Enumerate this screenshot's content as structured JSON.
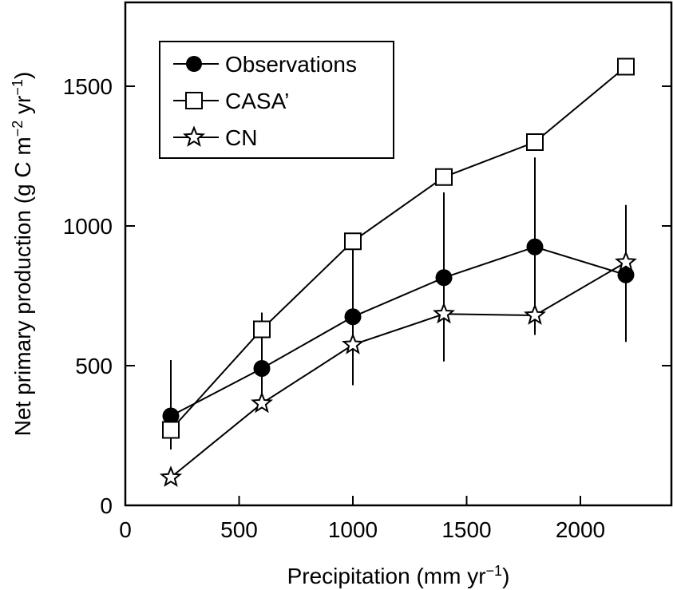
{
  "chart_data": {
    "type": "line",
    "xlabel": "Precipitation (mm yr",
    "xlabel_sup": "−1",
    "xlabel_end": ")",
    "ylabel": "Net primary production (g C m",
    "ylabel_sup1": "−2",
    "ylabel_mid": " yr",
    "ylabel_sup2": "−1",
    "ylabel_end": ")",
    "xlim": [
      0,
      2400
    ],
    "ylim": [
      0,
      1800
    ],
    "xticks": [
      0,
      500,
      1000,
      1500,
      2000
    ],
    "yticks": [
      0,
      500,
      1000,
      1500
    ],
    "xtick_labels": [
      "0",
      "500",
      "1000",
      "1500",
      "2000"
    ],
    "ytick_labels": [
      "0",
      "500",
      "1000",
      "1500"
    ],
    "grid": false,
    "legend_position": "top-left",
    "series": [
      {
        "name": "Observations",
        "marker": "filled-circle",
        "x": [
          200,
          600,
          1000,
          1400,
          1800,
          2200
        ],
        "y": [
          320,
          490,
          675,
          815,
          925,
          825
        ],
        "err_low": [
          200,
          360,
          430,
          515,
          610,
          585
        ],
        "err_high": [
          520,
          690,
          940,
          1120,
          1245,
          1075
        ]
      },
      {
        "name": "CASA’",
        "marker": "open-square",
        "x": [
          200,
          600,
          1000,
          1400,
          1800,
          2200
        ],
        "y": [
          270,
          630,
          945,
          1175,
          1300,
          1570
        ]
      },
      {
        "name": "CN",
        "marker": "open-star",
        "x": [
          200,
          600,
          1000,
          1400,
          1800,
          2200
        ],
        "y": [
          100,
          365,
          575,
          685,
          680,
          870
        ]
      }
    ]
  }
}
